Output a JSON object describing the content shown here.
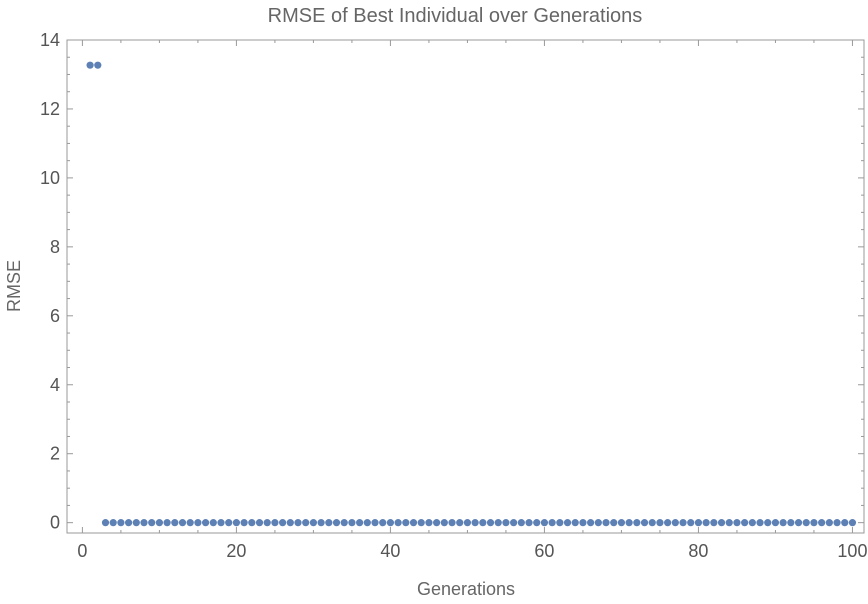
{
  "chart_data": {
    "type": "scatter",
    "title": "RMSE of Best Individual over Generations",
    "xlabel": "Generations",
    "ylabel": "RMSE",
    "xlim": [
      -2,
      101.5
    ],
    "ylim": [
      -0.3,
      14
    ],
    "xticks": [
      0,
      20,
      40,
      60,
      80,
      100
    ],
    "xtick_labels": [
      "0",
      "20",
      "40",
      "60",
      "80",
      "100"
    ],
    "yticks": [
      0,
      2,
      4,
      6,
      8,
      10,
      12,
      14
    ],
    "ytick_labels": [
      "0",
      "2",
      "4",
      "6",
      "8",
      "10",
      "12",
      "14"
    ],
    "grid": false,
    "point_color": "#5e81b5",
    "series": [
      {
        "x": [
          1,
          2,
          3,
          4,
          5,
          6,
          7,
          8,
          9,
          10,
          11,
          12,
          13,
          14,
          15,
          16,
          17,
          18,
          19,
          20,
          21,
          22,
          23,
          24,
          25,
          26,
          27,
          28,
          29,
          30,
          31,
          32,
          33,
          34,
          35,
          36,
          37,
          38,
          39,
          40,
          41,
          42,
          43,
          44,
          45,
          46,
          47,
          48,
          49,
          50,
          51,
          52,
          53,
          54,
          55,
          56,
          57,
          58,
          59,
          60,
          61,
          62,
          63,
          64,
          65,
          66,
          67,
          68,
          69,
          70,
          71,
          72,
          73,
          74,
          75,
          76,
          77,
          78,
          79,
          80,
          81,
          82,
          83,
          84,
          85,
          86,
          87,
          88,
          89,
          90,
          91,
          92,
          93,
          94,
          95,
          96,
          97,
          98,
          99,
          100
        ],
        "values": [
          13.27,
          13.27,
          0,
          0,
          0,
          0,
          0,
          0,
          0,
          0,
          0,
          0,
          0,
          0,
          0,
          0,
          0,
          0,
          0,
          0,
          0,
          0,
          0,
          0,
          0,
          0,
          0,
          0,
          0,
          0,
          0,
          0,
          0,
          0,
          0,
          0,
          0,
          0,
          0,
          0,
          0,
          0,
          0,
          0,
          0,
          0,
          0,
          0,
          0,
          0,
          0,
          0,
          0,
          0,
          0,
          0,
          0,
          0,
          0,
          0,
          0,
          0,
          0,
          0,
          0,
          0,
          0,
          0,
          0,
          0,
          0,
          0,
          0,
          0,
          0,
          0,
          0,
          0,
          0,
          0,
          0,
          0,
          0,
          0,
          0,
          0,
          0,
          0,
          0,
          0,
          0,
          0,
          0,
          0,
          0,
          0,
          0,
          0,
          0,
          0
        ]
      }
    ]
  }
}
